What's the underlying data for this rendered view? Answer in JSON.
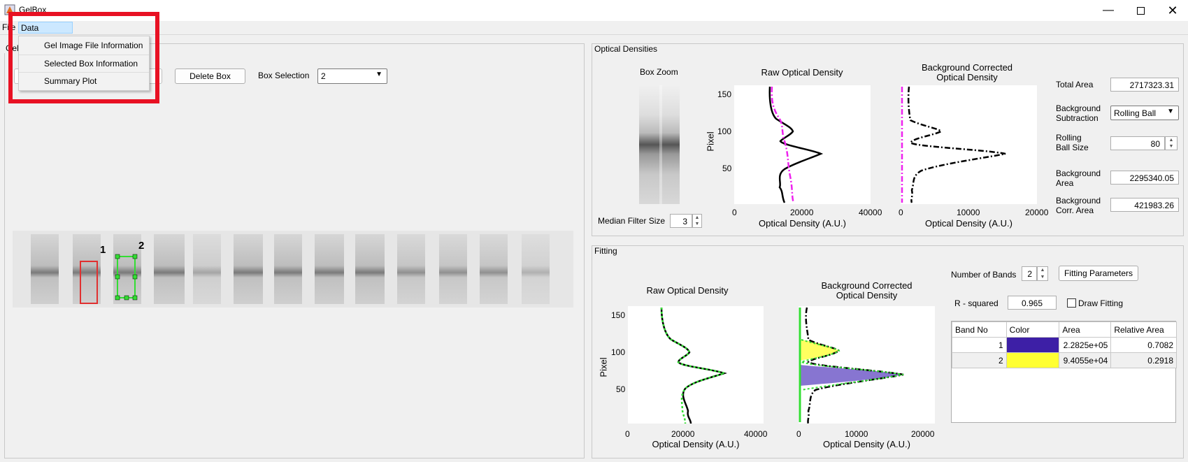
{
  "window": {
    "title": "GelBox",
    "minimize_icon": "minimize-icon",
    "maximize_icon": "maximize-icon",
    "close_icon": "close-icon"
  },
  "menubar": {
    "items": [
      "File",
      "Data Analysis"
    ],
    "active": "Data Analysis"
  },
  "dropdown": {
    "items": [
      "Gel Image File Information",
      "Selected Box Information",
      "Summary Plot"
    ]
  },
  "gel_panel": {
    "title_fragment": "Gel",
    "delete_box_label": "Delete Box",
    "box_selection_label": "Box Selection",
    "box_selection_value": "2",
    "box_labels": [
      "1",
      "2"
    ]
  },
  "optical_densities": {
    "title": "Optical Densities",
    "box_zoom_title": "Box Zoom",
    "median_filter_label": "Median Filter Size",
    "median_filter_value": "3",
    "raw_plot": {
      "title": "Raw Optical Density",
      "xlabel": "Optical Density (A.U.)",
      "ylabel": "Pixel",
      "xticks": [
        "0",
        "20000",
        "40000"
      ],
      "yticks": [
        "150",
        "100",
        "50"
      ]
    },
    "bg_plot": {
      "title_line1": "Background Corrected",
      "title_line2": "Optical Density",
      "xlabel": "Optical Density (A.U.)",
      "xticks": [
        "0",
        "10000",
        "20000"
      ]
    },
    "total_area_label": "Total Area",
    "total_area_value": "2717323.31",
    "bg_subtraction_label_1": "Background",
    "bg_subtraction_label_2": "Subtraction",
    "bg_subtraction_value": "Rolling Ball",
    "rolling_ball_label_1": "Rolling",
    "rolling_ball_label_2": "Ball Size",
    "rolling_ball_value": "80",
    "bg_area_label_1": "Background",
    "bg_area_label_2": "Area",
    "bg_area_value": "2295340.05",
    "bg_corr_label_1": "Background",
    "bg_corr_label_2": "Corr. Area",
    "bg_corr_value": "421983.26"
  },
  "fitting": {
    "title": "Fitting",
    "raw_plot": {
      "title": "Raw Optical Density",
      "xlabel": "Optical Density (A.U.)",
      "ylabel": "Pixel",
      "xticks": [
        "0",
        "20000",
        "40000"
      ],
      "yticks": [
        "150",
        "100",
        "50"
      ]
    },
    "bg_plot": {
      "title_line1": "Background Corrected",
      "title_line2": "Optical Density",
      "xlabel": "Optical Density (A.U.)",
      "xticks": [
        "0",
        "10000",
        "20000"
      ]
    },
    "num_bands_label": "Number of Bands",
    "num_bands_value": "2",
    "fitting_params_label": "Fitting Parameters",
    "r_squared_label": "R - squared",
    "r_squared_value": "0.965",
    "draw_fitting_label": "Draw Fitting",
    "table": {
      "headers": [
        "Band No",
        "Color",
        "Area",
        "Relative Area"
      ],
      "rows": [
        {
          "band": "1",
          "color": "#3d1fa6",
          "area": "2.2825e+05",
          "relative": "0.7082"
        },
        {
          "band": "2",
          "color": "#ffff33",
          "area": "9.4055e+04",
          "relative": "0.2918"
        }
      ]
    }
  },
  "colors": {
    "highlight": "#e81123",
    "box1": "#e03030",
    "box2": "#33dd33",
    "bg_line": "#ee22ee",
    "fit_line": "#33dd33"
  }
}
